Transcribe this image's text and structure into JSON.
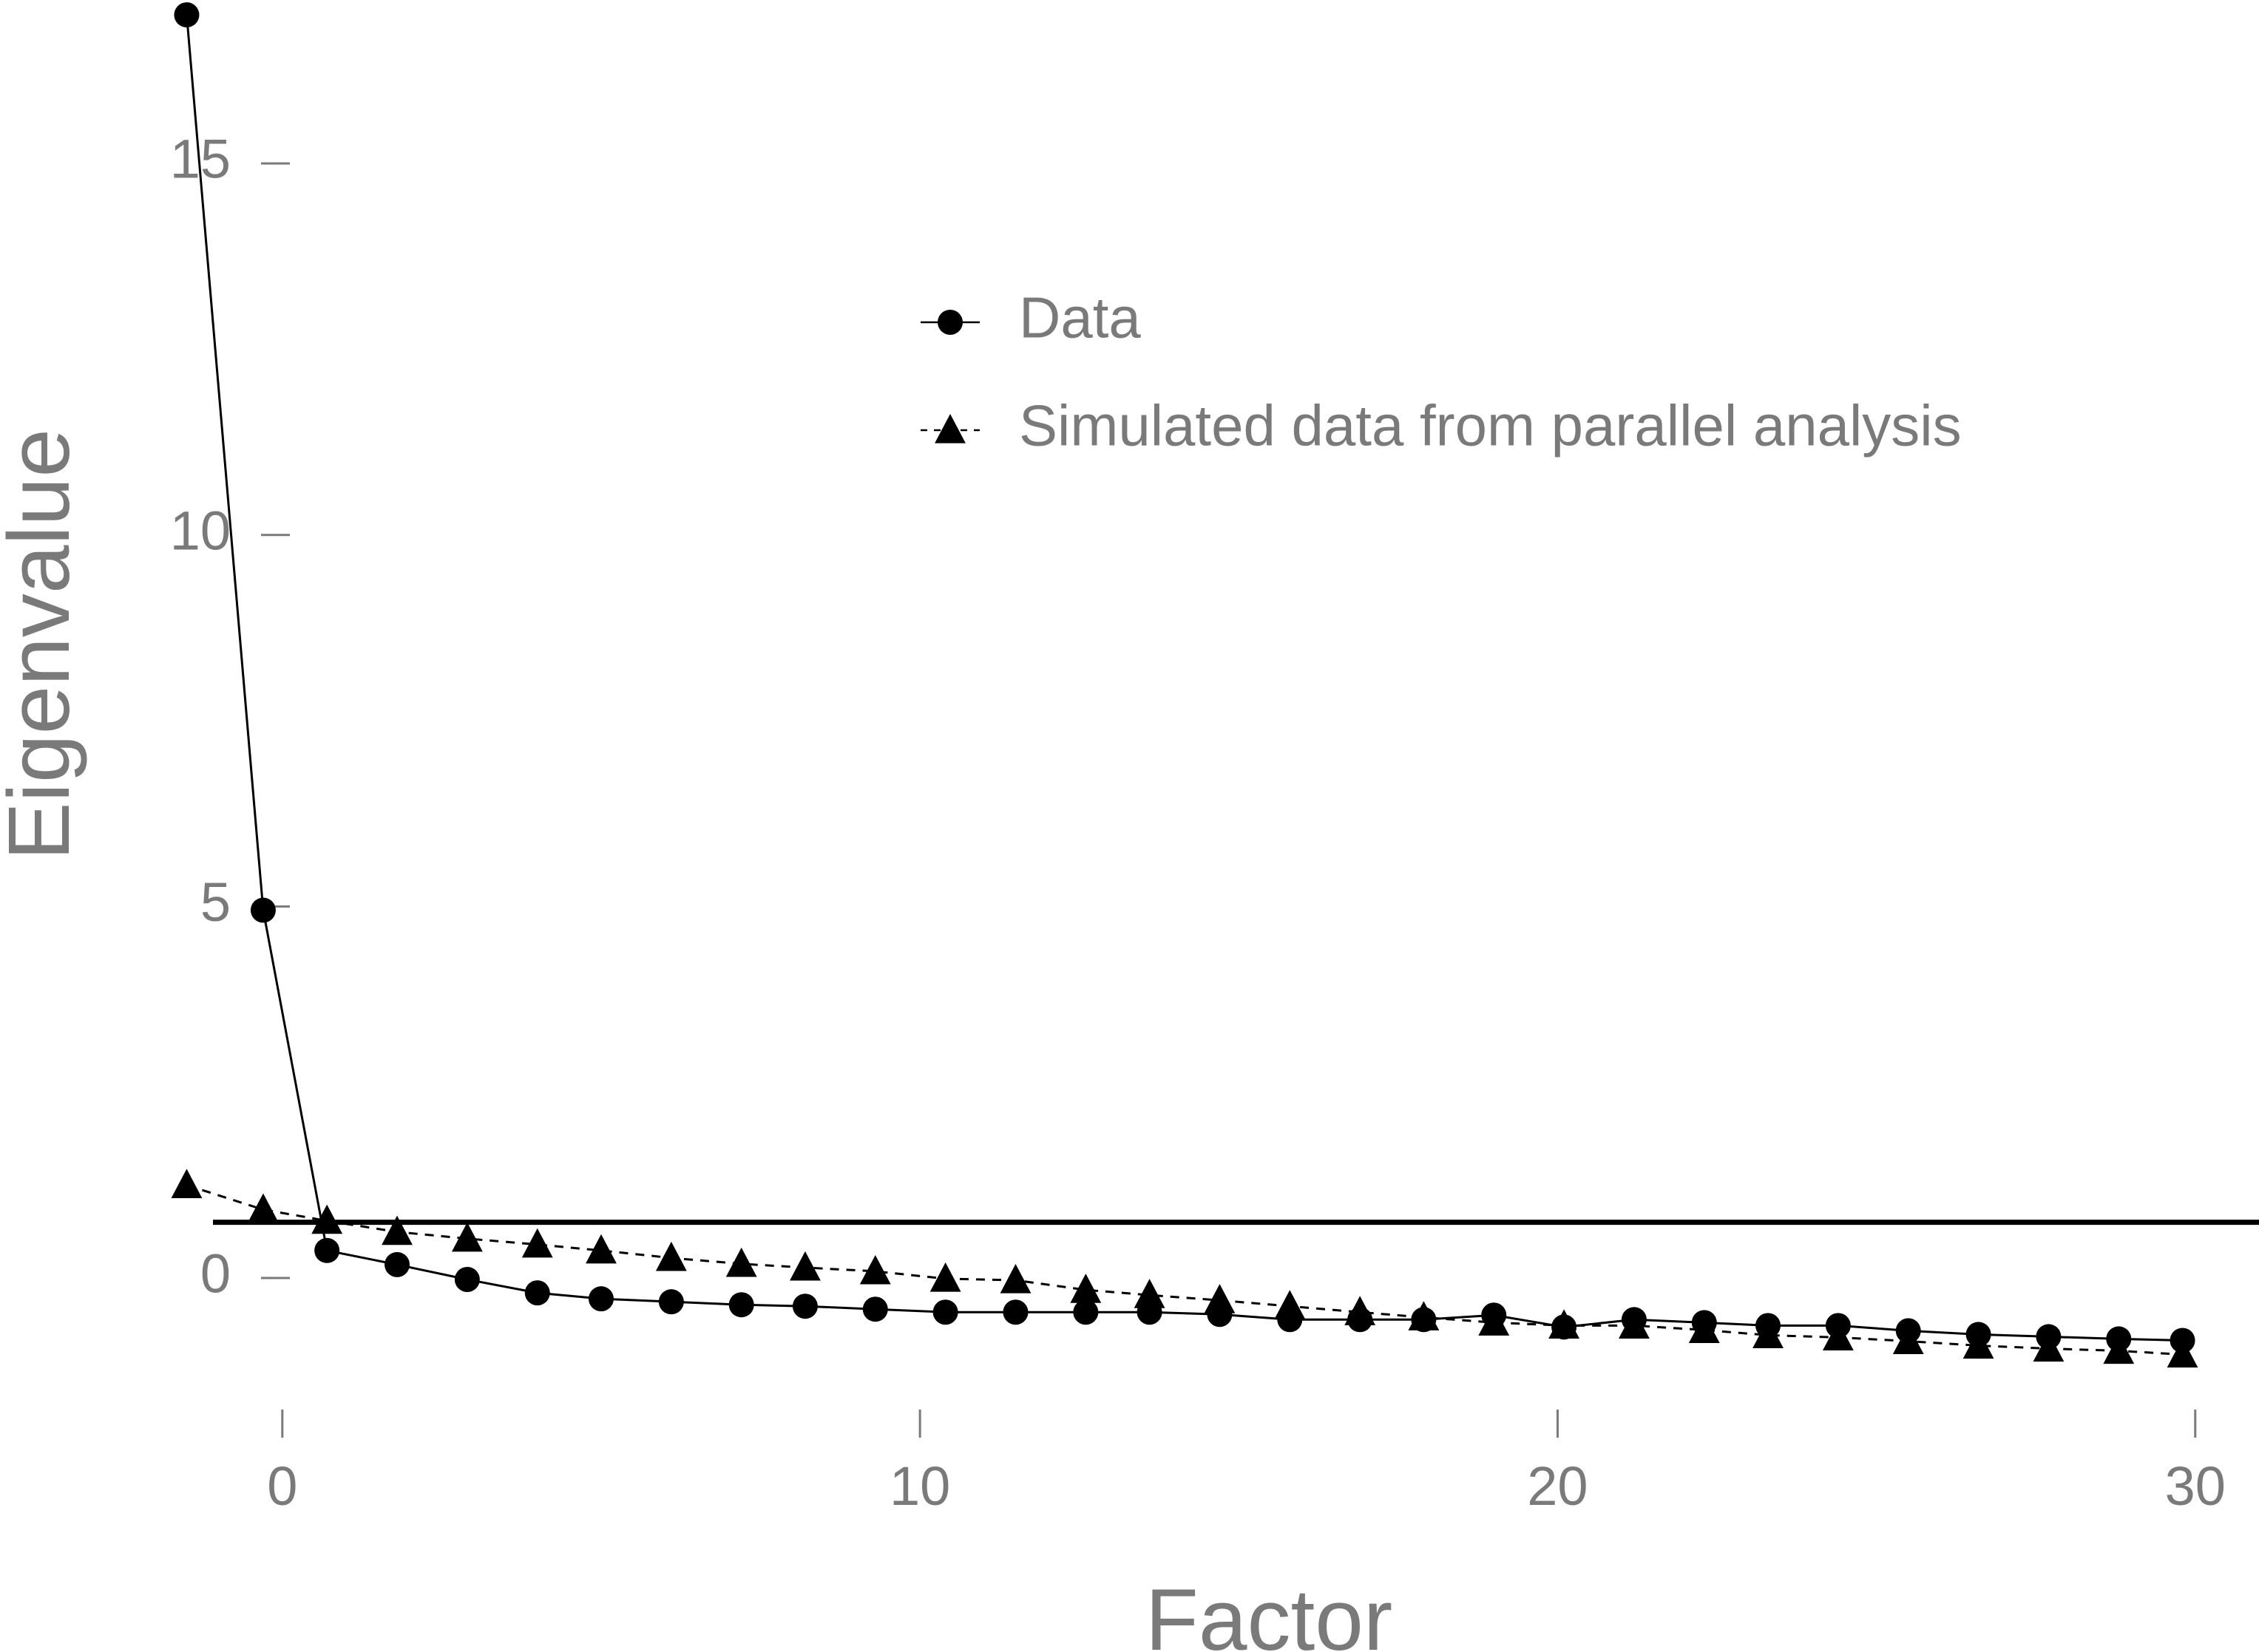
{
  "chart_data": {
    "type": "line",
    "xlabel": "Factor",
    "ylabel": "Eigenvalue",
    "xlim": [
      -3.5,
      31
    ],
    "ylim": [
      -1.9,
      17.2
    ],
    "xticks": [
      0,
      10,
      20,
      30
    ],
    "yticks": [
      0,
      5,
      10,
      15
    ],
    "reference_line": {
      "y": 0.75
    },
    "legend_position": "top-center",
    "grid": false,
    "series": [
      {
        "name": "Data",
        "marker": "circle",
        "line_style": "solid",
        "x": [
          -1.5,
          -0.3,
          0.7,
          1.8,
          2.9,
          4.0,
          5.0,
          6.1,
          7.2,
          8.2,
          9.3,
          10.4,
          11.5,
          12.6,
          13.6,
          14.7,
          15.8,
          16.9,
          17.9,
          19.0,
          20.1,
          21.2,
          22.3,
          23.3,
          24.4,
          25.5,
          26.6,
          27.7,
          28.8,
          29.8
        ],
        "y": [
          17.0,
          4.95,
          0.37,
          0.18,
          -0.02,
          -0.2,
          -0.28,
          -0.32,
          -0.36,
          -0.38,
          -0.42,
          -0.46,
          -0.46,
          -0.46,
          -0.46,
          -0.49,
          -0.56,
          -0.56,
          -0.56,
          -0.5,
          -0.66,
          -0.56,
          -0.6,
          -0.64,
          -0.64,
          -0.71,
          -0.76,
          -0.79,
          -0.82,
          -0.84
        ]
      },
      {
        "name": "Simulated data from parallel analysis",
        "marker": "triangle",
        "line_style": "dashed",
        "x": [
          -1.5,
          -0.3,
          0.7,
          1.8,
          2.9,
          4.0,
          5.0,
          6.1,
          7.2,
          8.2,
          9.3,
          10.4,
          11.5,
          12.6,
          13.6,
          14.7,
          15.8,
          16.9,
          17.9,
          19.0,
          20.1,
          21.2,
          22.3,
          23.3,
          24.4,
          25.5,
          26.6,
          27.7,
          28.8,
          29.8
        ],
        "y": [
          1.25,
          0.92,
          0.77,
          0.62,
          0.53,
          0.45,
          0.37,
          0.27,
          0.19,
          0.14,
          0.09,
          -0.01,
          -0.03,
          -0.16,
          -0.23,
          -0.3,
          -0.38,
          -0.46,
          -0.53,
          -0.6,
          -0.64,
          -0.64,
          -0.7,
          -0.77,
          -0.8,
          -0.85,
          -0.91,
          -0.95,
          -0.98,
          -1.03
        ]
      }
    ]
  }
}
